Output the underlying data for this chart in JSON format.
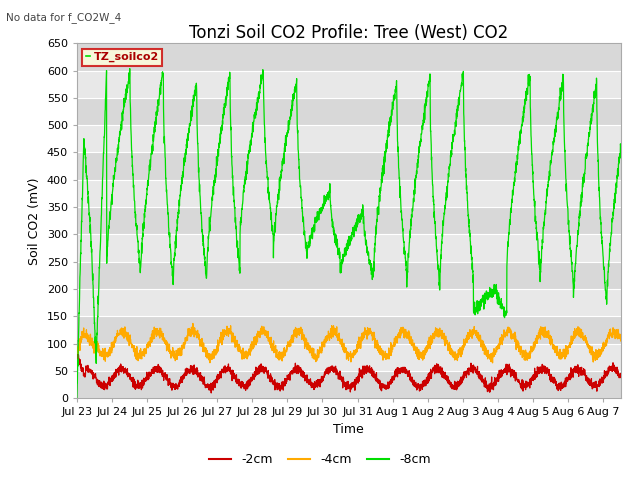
{
  "title": "Tonzi Soil CO2 Profile: Tree (West) CO2",
  "no_data_text": "No data for f_CO2W_4",
  "ylabel": "Soil CO2 (mV)",
  "xlabel": "Time",
  "legend_label": "TZ_soilco2",
  "series_labels": [
    "-2cm",
    "-4cm",
    "-8cm"
  ],
  "series_colors": [
    "#cc0000",
    "#ffaa00",
    "#00dd00"
  ],
  "ylim": [
    0,
    650
  ],
  "n_days": 15.5,
  "xtick_labels": [
    "Jul 23",
    "Jul 24",
    "Jul 25",
    "Jul 26",
    "Jul 27",
    "Jul 28",
    "Jul 29",
    "Jul 30",
    "Jul 31",
    "Aug 1",
    "Aug 2",
    "Aug 3",
    "Aug 4",
    "Aug 5",
    "Aug 6",
    "Aug 7"
  ],
  "background_color": "#ffffff",
  "plot_bg_color": "#e8e8e8",
  "alt_band_color": "#d8d8d8",
  "grid_color": "#ffffff",
  "title_fontsize": 12,
  "label_fontsize": 9,
  "tick_fontsize": 8,
  "yticks": [
    0,
    50,
    100,
    150,
    200,
    250,
    300,
    350,
    400,
    450,
    500,
    550,
    600,
    650
  ]
}
